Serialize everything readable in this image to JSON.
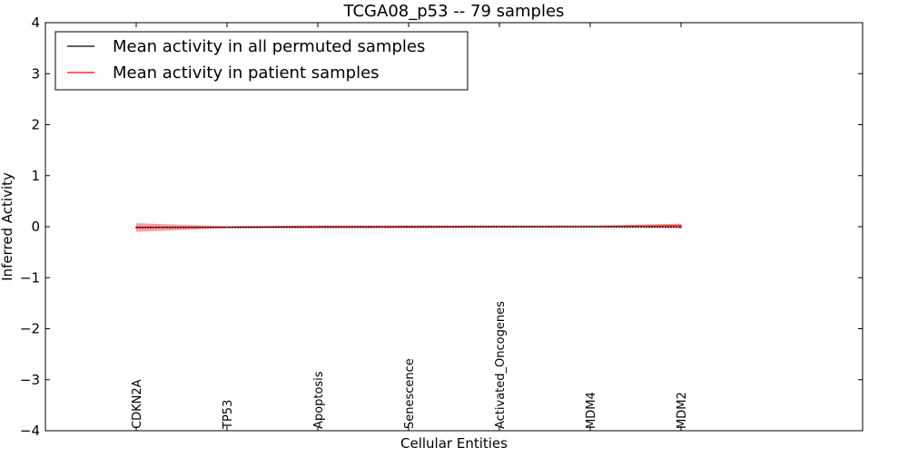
{
  "chart_data": {
    "type": "line",
    "title": "TCGA08_p53 -- 79 samples",
    "xlabel": "Cellular Entities",
    "ylabel": "Inferred Activity",
    "categories": [
      "CDKN2A",
      "TP53",
      "Apoptosis",
      "Senescence",
      "Activated_Oncogenes",
      "MDM4",
      "MDM2"
    ],
    "x_positions": [
      1,
      2,
      3,
      4,
      5,
      6,
      7
    ],
    "xlim": [
      0,
      9
    ],
    "ylim": [
      -4,
      4
    ],
    "yticks": [
      4,
      3,
      2,
      1,
      0,
      -1,
      -2,
      -3,
      -4
    ],
    "ytick_labels": [
      "4",
      "3",
      "2",
      "1",
      "0",
      "−1",
      "−2",
      "−3",
      "−4"
    ],
    "legend_position": "upper-left",
    "series": [
      {
        "name": "Mean activity in all permuted samples",
        "color": "#000000",
        "values": [
          -0.01,
          -0.01,
          -0.005,
          0.0,
          0.0,
          0.0,
          -0.01
        ],
        "band_lower": [
          -0.04,
          -0.04,
          -0.04,
          -0.03,
          -0.03,
          -0.03,
          -0.04
        ],
        "band_upper": [
          0.02,
          0.02,
          0.03,
          0.03,
          0.03,
          0.03,
          0.02
        ]
      },
      {
        "name": "Mean activity in patient samples",
        "color": "#ff0000",
        "band_color": "#f08080",
        "values": [
          -0.02,
          -0.01,
          -0.005,
          -0.005,
          0.0,
          0.0,
          0.02
        ],
        "band_lower": [
          -0.1,
          -0.03,
          -0.03,
          -0.03,
          -0.02,
          -0.01,
          -0.01
        ],
        "band_upper": [
          0.07,
          0.01,
          0.02,
          0.02,
          0.02,
          0.02,
          0.06
        ]
      }
    ]
  }
}
